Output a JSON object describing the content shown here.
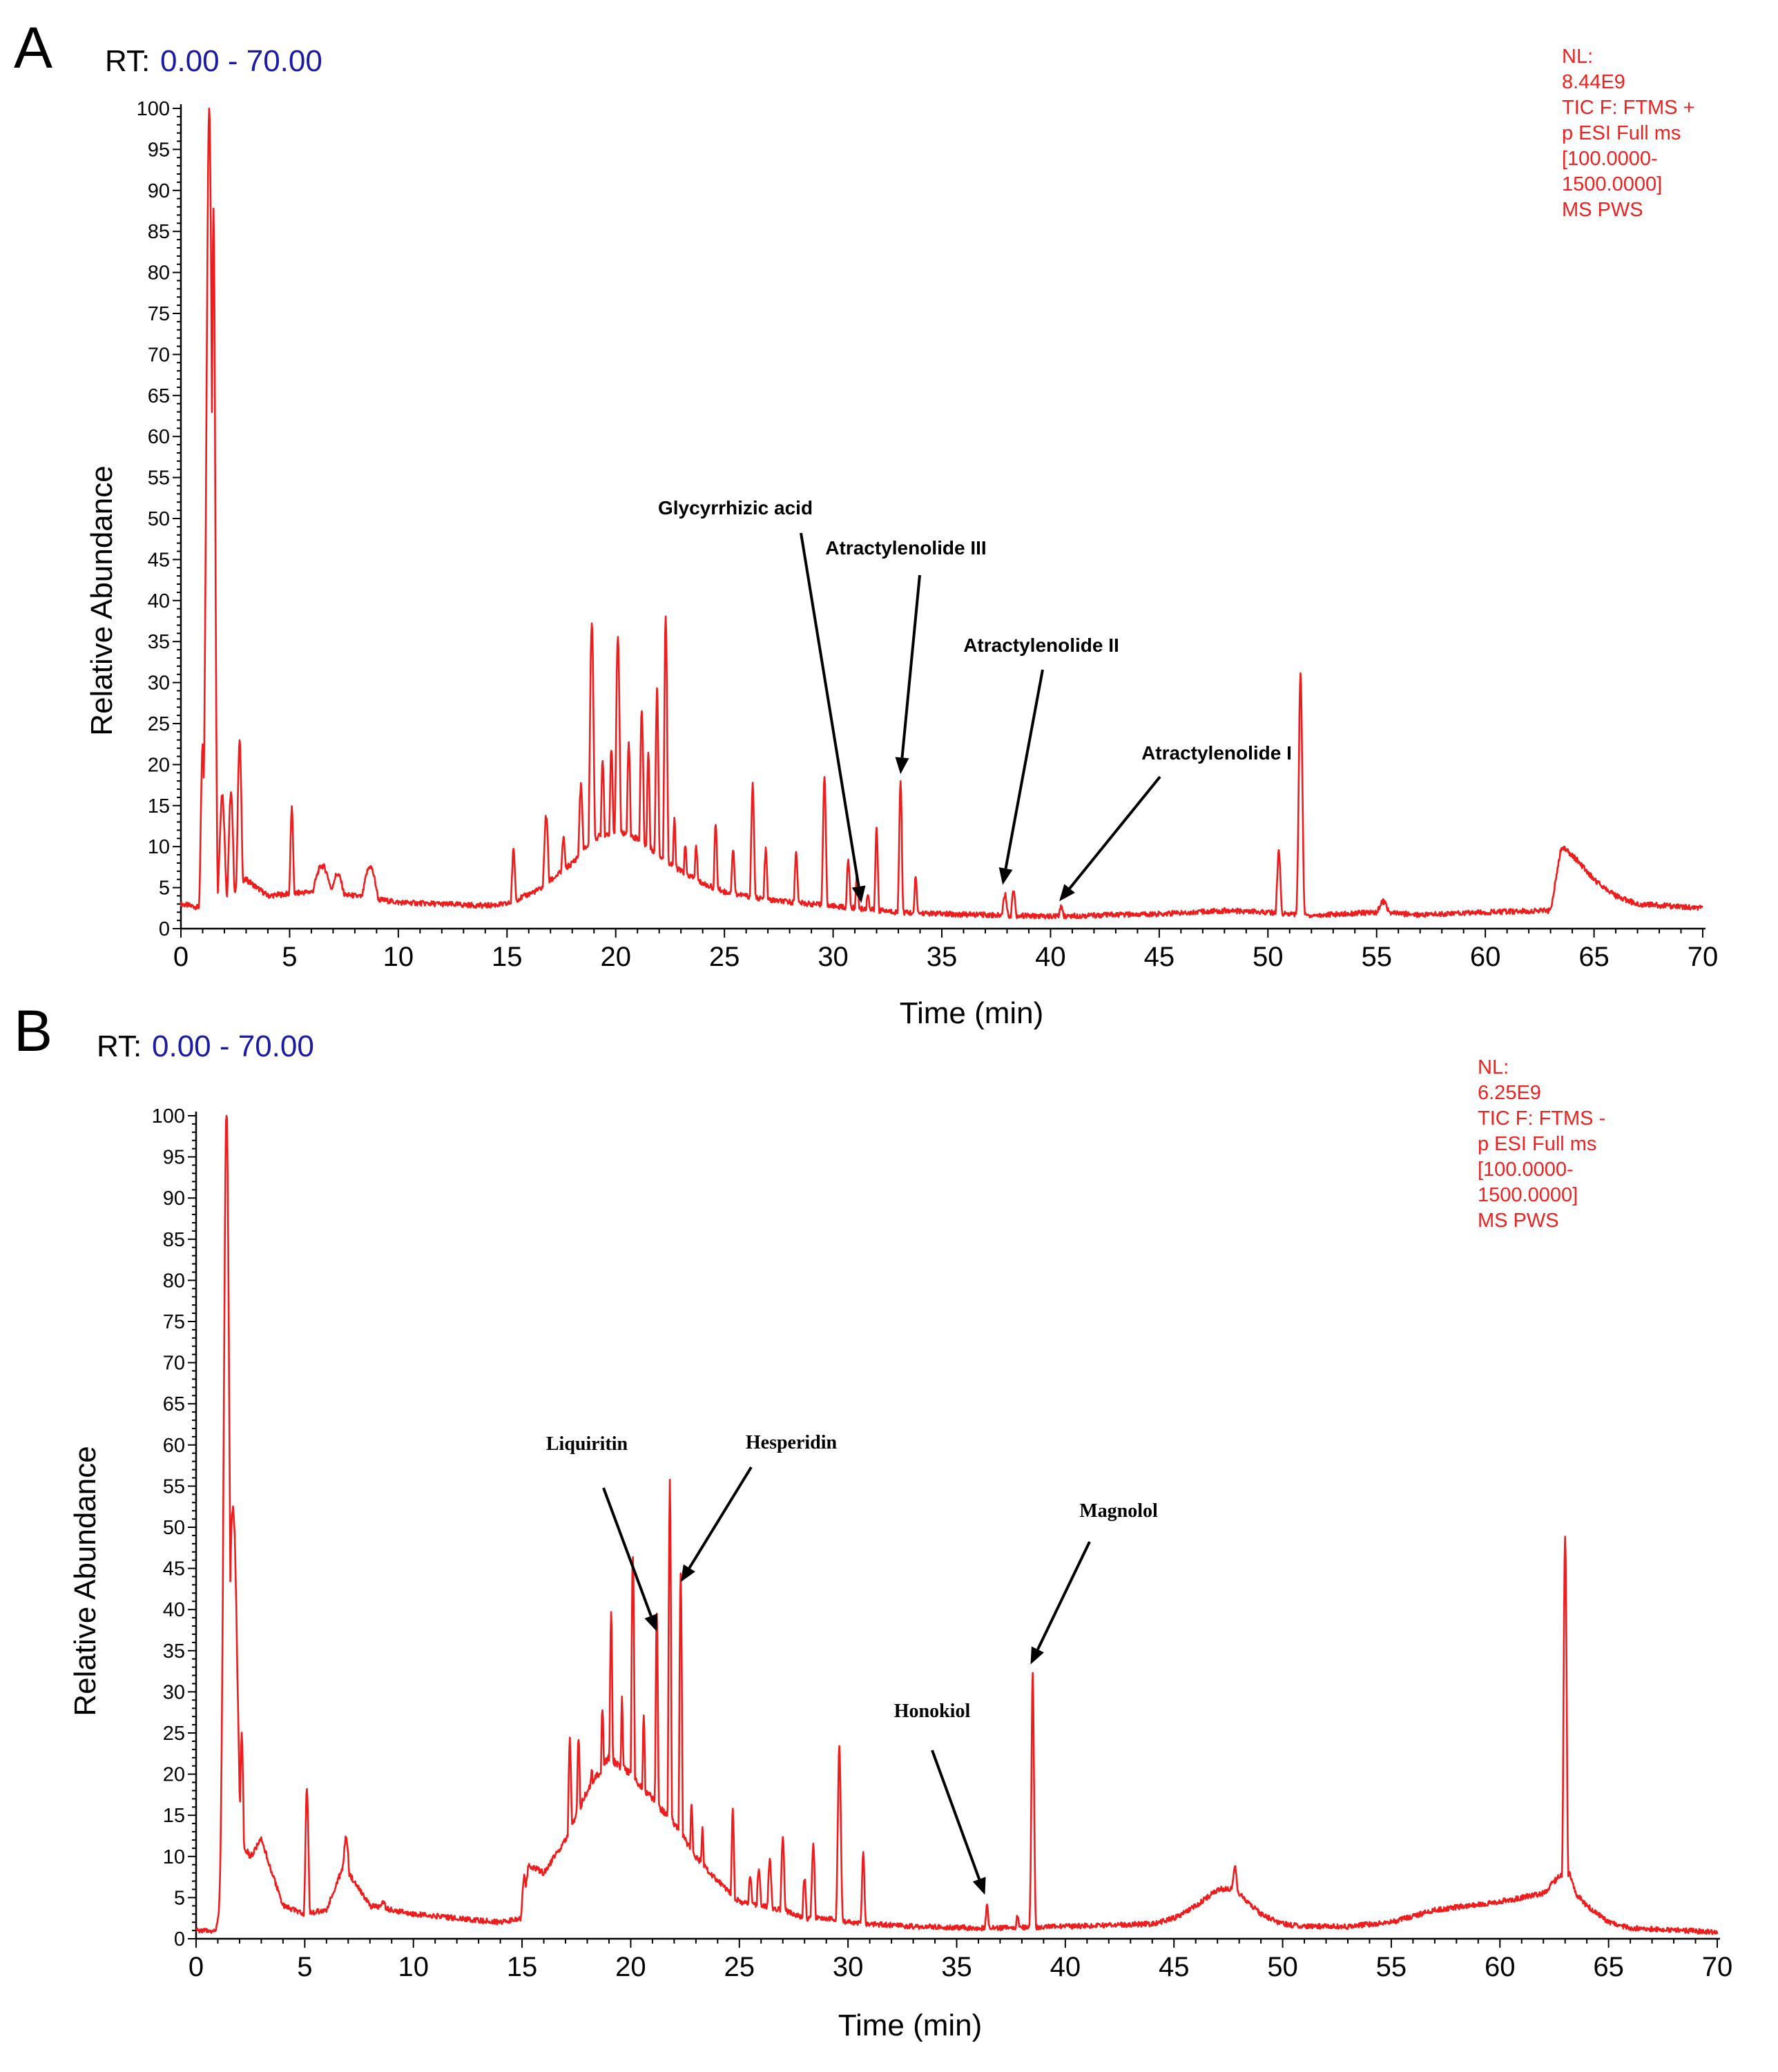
{
  "chart_data": [
    {
      "type": "line",
      "panel_label": "A",
      "rt_label": "RT:",
      "rt_range": "0.00 - 70.00",
      "info_lines": [
        "NL:",
        "8.44E9",
        "TIC F: FTMS +",
        "p ESI Full ms",
        "[100.0000-",
        "1500.0000]",
        "MS PWS"
      ],
      "xlabel": "Time (min)",
      "ylabel": "Relative Abundance",
      "xlim": [
        0,
        70
      ],
      "ylim": [
        0,
        100
      ],
      "x_ticks": [
        0,
        5,
        10,
        15,
        20,
        25,
        30,
        35,
        40,
        45,
        50,
        55,
        60,
        65,
        70
      ],
      "y_ticks": [
        0,
        5,
        10,
        15,
        20,
        25,
        30,
        35,
        40,
        45,
        50,
        55,
        60,
        65,
        70,
        75,
        80,
        85,
        90,
        95,
        100
      ],
      "baseline": [
        [
          0,
          3
        ],
        [
          1,
          2.5
        ],
        [
          2,
          3.2
        ],
        [
          3,
          6
        ],
        [
          4,
          4
        ],
        [
          6,
          4.5
        ],
        [
          8,
          4
        ],
        [
          10,
          3.2
        ],
        [
          12,
          3
        ],
        [
          14,
          2.8
        ],
        [
          15,
          3
        ],
        [
          16.5,
          4.8
        ],
        [
          18,
          8
        ],
        [
          19,
          11
        ],
        [
          20,
          12
        ],
        [
          21,
          11
        ],
        [
          22,
          9
        ],
        [
          23,
          7
        ],
        [
          24,
          5.5
        ],
        [
          25,
          4.5
        ],
        [
          27,
          3.5
        ],
        [
          29,
          3
        ],
        [
          31,
          2.5
        ],
        [
          33,
          2
        ],
        [
          35,
          1.8
        ],
        [
          40,
          1.5
        ],
        [
          45,
          1.8
        ],
        [
          48,
          2.2
        ],
        [
          50,
          2
        ],
        [
          51,
          1.8
        ],
        [
          52,
          1.6
        ],
        [
          55,
          2
        ],
        [
          57,
          1.7
        ],
        [
          60,
          2
        ],
        [
          63,
          2.2
        ],
        [
          63.5,
          10
        ],
        [
          64,
          9
        ],
        [
          65,
          6
        ],
        [
          66,
          4
        ],
        [
          67,
          3
        ],
        [
          70,
          2.5
        ]
      ],
      "peaks": [
        [
          1.0,
          22,
          0.08
        ],
        [
          1.3,
          100,
          0.13
        ],
        [
          1.5,
          88,
          0.08
        ],
        [
          1.9,
          16,
          0.12
        ],
        [
          2.3,
          16,
          0.1
        ],
        [
          2.7,
          22,
          0.09
        ],
        [
          5.1,
          14,
          0.07
        ],
        [
          6.5,
          7,
          0.4
        ],
        [
          7.2,
          6,
          0.3
        ],
        [
          8.7,
          7,
          0.3
        ],
        [
          15.3,
          9,
          0.08
        ],
        [
          16.8,
          13,
          0.1
        ],
        [
          17.6,
          10,
          0.1
        ],
        [
          18.4,
          16,
          0.1
        ],
        [
          18.9,
          36,
          0.09
        ],
        [
          19.4,
          19,
          0.08
        ],
        [
          19.8,
          20,
          0.08
        ],
        [
          20.1,
          34,
          0.09
        ],
        [
          20.6,
          21,
          0.08
        ],
        [
          21.2,
          25,
          0.08
        ],
        [
          21.5,
          20,
          0.07
        ],
        [
          21.9,
          28,
          0.07
        ],
        [
          22.3,
          37,
          0.07
        ],
        [
          22.7,
          12,
          0.07
        ],
        [
          23.2,
          9,
          0.08
        ],
        [
          23.7,
          9,
          0.08
        ],
        [
          24.6,
          12,
          0.07
        ],
        [
          25.4,
          9,
          0.08
        ],
        [
          26.3,
          17,
          0.07
        ],
        [
          26.9,
          9,
          0.07
        ],
        [
          28.3,
          9,
          0.07
        ],
        [
          29.6,
          18,
          0.07
        ],
        [
          30.7,
          8,
          0.07
        ],
        [
          31.1,
          6,
          0.07
        ],
        [
          31.6,
          4,
          0.07
        ],
        [
          32.0,
          12,
          0.06
        ],
        [
          33.1,
          18,
          0.06
        ],
        [
          33.8,
          6,
          0.06
        ],
        [
          37.9,
          4,
          0.1
        ],
        [
          38.3,
          4.5,
          0.08
        ],
        [
          40.5,
          2.5,
          0.1
        ],
        [
          50.5,
          9,
          0.08
        ],
        [
          51.5,
          31,
          0.08
        ],
        [
          55.3,
          3,
          0.25
        ]
      ],
      "annotations": [
        {
          "label": "Glycyrrhizic acid",
          "x": 31.3,
          "y": 2.8
        },
        {
          "label": "Atractylenolide III",
          "x": 33.1,
          "y": 18.5
        },
        {
          "label": "Atractylenolide II",
          "x": 37.8,
          "y": 5
        },
        {
          "label": "Atractylenolide I",
          "x": 40.4,
          "y": 3
        }
      ]
    },
    {
      "type": "line",
      "panel_label": "B",
      "rt_label": "RT:",
      "rt_range": "0.00 - 70.00",
      "info_lines": [
        "NL:",
        "6.25E9",
        "TIC F: FTMS -",
        "p ESI Full ms",
        "[100.0000-",
        "1500.0000]",
        "MS PWS"
      ],
      "xlabel": "Time (min)",
      "ylabel": "Relative Abundance",
      "xlim": [
        0,
        70
      ],
      "ylim": [
        0,
        100
      ],
      "x_ticks": [
        0,
        5,
        10,
        15,
        20,
        25,
        30,
        35,
        40,
        45,
        50,
        55,
        60,
        65,
        70
      ],
      "y_ticks": [
        0,
        5,
        10,
        15,
        20,
        25,
        30,
        35,
        40,
        45,
        50,
        55,
        60,
        65,
        70,
        75,
        80,
        85,
        90,
        95,
        100
      ],
      "baseline": [
        [
          0,
          1
        ],
        [
          0.9,
          1
        ],
        [
          1.1,
          4
        ],
        [
          1.3,
          3
        ],
        [
          1.6,
          20
        ],
        [
          2,
          12
        ],
        [
          2.5,
          10
        ],
        [
          3,
          12
        ],
        [
          3.5,
          8
        ],
        [
          4,
          4
        ],
        [
          5,
          3
        ],
        [
          6,
          3.5
        ],
        [
          6.8,
          9
        ],
        [
          7.5,
          6
        ],
        [
          8,
          4
        ],
        [
          9,
          3.5
        ],
        [
          10,
          3
        ],
        [
          12,
          2.5
        ],
        [
          14,
          2
        ],
        [
          15,
          2.5
        ],
        [
          15.3,
          9
        ],
        [
          16,
          8
        ],
        [
          17,
          12
        ],
        [
          18,
          18
        ],
        [
          19,
          22
        ],
        [
          20,
          20
        ],
        [
          21,
          17
        ],
        [
          22,
          14
        ],
        [
          23,
          10
        ],
        [
          24,
          7
        ],
        [
          25,
          4.5
        ],
        [
          26,
          4
        ],
        [
          27,
          3.5
        ],
        [
          28,
          2.5
        ],
        [
          29,
          2.5
        ],
        [
          30,
          2
        ],
        [
          31,
          1.8
        ],
        [
          33,
          1.5
        ],
        [
          36,
          1.3
        ],
        [
          40,
          1.5
        ],
        [
          44,
          1.8
        ],
        [
          45,
          2.5
        ],
        [
          46,
          4
        ],
        [
          47,
          6
        ],
        [
          47.7,
          6
        ],
        [
          48,
          5.5
        ],
        [
          49,
          3
        ],
        [
          50,
          1.8
        ],
        [
          51,
          1.5
        ],
        [
          53,
          1.5
        ],
        [
          55,
          2
        ],
        [
          57,
          3.5
        ],
        [
          60,
          4.5
        ],
        [
          62,
          5.5
        ],
        [
          62.7,
          7.5
        ],
        [
          63.2,
          8
        ],
        [
          63.5,
          5.5
        ],
        [
          64,
          4
        ],
        [
          65,
          2
        ],
        [
          66,
          1.3
        ],
        [
          70,
          0.8
        ]
      ],
      "peaks": [
        [
          1.4,
          100,
          0.13
        ],
        [
          1.7,
          50,
          0.2
        ],
        [
          2.1,
          23,
          0.08
        ],
        [
          5.1,
          18,
          0.07
        ],
        [
          6.9,
          11,
          0.15
        ],
        [
          8.6,
          4,
          0.2
        ],
        [
          15.1,
          7,
          0.1
        ],
        [
          17.2,
          22,
          0.08
        ],
        [
          17.6,
          22,
          0.08
        ],
        [
          18.2,
          18,
          0.08
        ],
        [
          18.7,
          25,
          0.08
        ],
        [
          19.1,
          36,
          0.07
        ],
        [
          19.6,
          26,
          0.07
        ],
        [
          20.1,
          44,
          0.07
        ],
        [
          20.6,
          24,
          0.07
        ],
        [
          21.2,
          37,
          0.06
        ],
        [
          21.8,
          53,
          0.06
        ],
        [
          22.3,
          43,
          0.06
        ],
        [
          22.8,
          15,
          0.07
        ],
        [
          23.3,
          12,
          0.07
        ],
        [
          24.7,
          15,
          0.06
        ],
        [
          25.5,
          7,
          0.08
        ],
        [
          25.9,
          8,
          0.08
        ],
        [
          26.4,
          9,
          0.08
        ],
        [
          27.0,
          12,
          0.07
        ],
        [
          28.0,
          7,
          0.07
        ],
        [
          28.4,
          11,
          0.07
        ],
        [
          29.6,
          23,
          0.07
        ],
        [
          30.7,
          10,
          0.06
        ],
        [
          36.4,
          4,
          0.06
        ],
        [
          37.8,
          2.5,
          0.06
        ],
        [
          38.5,
          32,
          0.06
        ],
        [
          47.8,
          8,
          0.12
        ],
        [
          63.0,
          48,
          0.07
        ]
      ],
      "annotations": [
        {
          "label": "Liquiritin",
          "x": 21.2,
          "y": 37
        },
        {
          "label": "Hesperidin",
          "x": 22.3,
          "y": 43
        },
        {
          "label": "Honokiol",
          "x": 36.3,
          "y": 5
        },
        {
          "label": "Magnolol",
          "x": 38.4,
          "y": 33
        }
      ]
    }
  ]
}
